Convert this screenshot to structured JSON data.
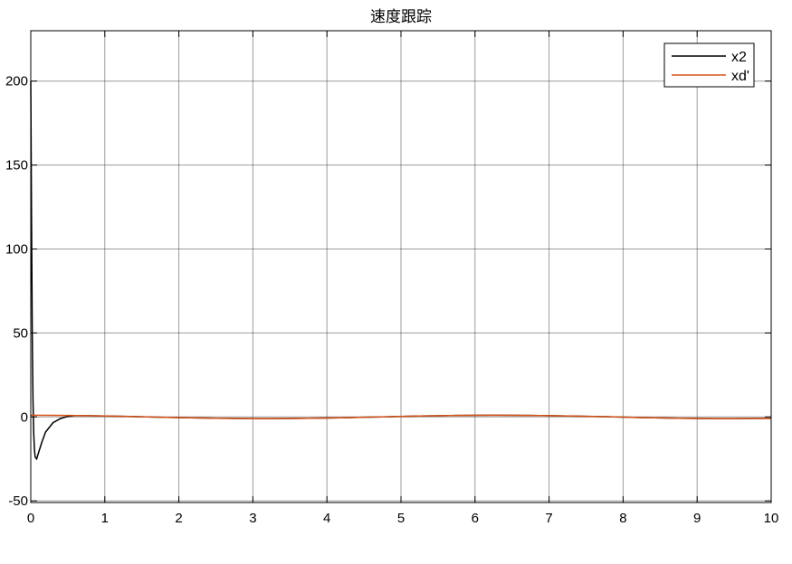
{
  "chart_data": {
    "type": "line",
    "title": "速度跟踪",
    "xlabel": "",
    "ylabel": "",
    "xlim": [
      0,
      10
    ],
    "ylim": [
      -51,
      230
    ],
    "xticks": [
      0,
      1,
      2,
      3,
      4,
      5,
      6,
      7,
      8,
      9,
      10
    ],
    "yticks": [
      -50,
      0,
      50,
      100,
      150,
      200
    ],
    "grid": true,
    "legend_position": "top-right",
    "series": [
      {
        "name": "x2",
        "color": "#000000",
        "x": [
          0,
          0.01,
          0.02,
          0.03,
          0.04,
          0.05,
          0.06,
          0.08,
          0.1,
          0.15,
          0.2,
          0.3,
          0.4,
          0.5,
          0.6,
          0.75,
          1,
          1.25,
          1.5,
          1.75,
          2,
          2.25,
          2.5,
          2.75,
          3,
          3.25,
          3.5,
          3.75,
          4,
          4.25,
          4.5,
          4.75,
          5,
          5.25,
          5.5,
          5.75,
          6,
          6.25,
          6.5,
          6.75,
          7,
          7.25,
          7.5,
          7.75,
          8,
          8.25,
          8.5,
          8.75,
          9,
          9.25,
          9.5,
          9.75,
          10
        ],
        "y": [
          200,
          120,
          50,
          10,
          -10,
          -20,
          -24,
          -25,
          -22,
          -15,
          -9,
          -3.5,
          -1,
          0.3,
          0.8,
          0.73,
          0.54,
          0.315,
          0.071,
          -0.178,
          -0.416,
          -0.628,
          -0.801,
          -0.924,
          -0.99,
          -0.994,
          -0.936,
          -0.821,
          -0.654,
          -0.446,
          -0.211,
          0.038,
          0.284,
          0.512,
          0.709,
          0.861,
          0.96,
          1.0,
          0.977,
          0.893,
          0.754,
          0.568,
          0.347,
          0.105,
          -0.146,
          -0.39,
          -0.602,
          -0.78,
          -0.911,
          -0.985,
          -0.997,
          -0.948,
          -0.839
        ]
      },
      {
        "name": "xd'",
        "color": "#D95319",
        "x": [
          0,
          0.25,
          0.5,
          0.75,
          1,
          1.25,
          1.5,
          1.75,
          2,
          2.25,
          2.5,
          2.75,
          3,
          3.25,
          3.5,
          3.75,
          4,
          4.25,
          4.5,
          4.75,
          5,
          5.25,
          5.5,
          5.75,
          6,
          6.25,
          6.5,
          6.75,
          7,
          7.25,
          7.5,
          7.75,
          8,
          8.25,
          8.5,
          8.75,
          9,
          9.25,
          9.5,
          9.75,
          10
        ],
        "y": [
          1,
          0.969,
          0.878,
          0.732,
          0.54,
          0.315,
          0.071,
          -0.178,
          -0.416,
          -0.628,
          -0.801,
          -0.924,
          -0.99,
          -0.994,
          -0.936,
          -0.821,
          -0.654,
          -0.446,
          -0.211,
          0.038,
          0.284,
          0.512,
          0.709,
          0.861,
          0.96,
          1.0,
          0.977,
          0.893,
          0.754,
          0.568,
          0.347,
          0.105,
          -0.146,
          -0.39,
          -0.602,
          -0.78,
          -0.911,
          -0.985,
          -0.997,
          -0.948,
          -0.839
        ]
      }
    ]
  }
}
